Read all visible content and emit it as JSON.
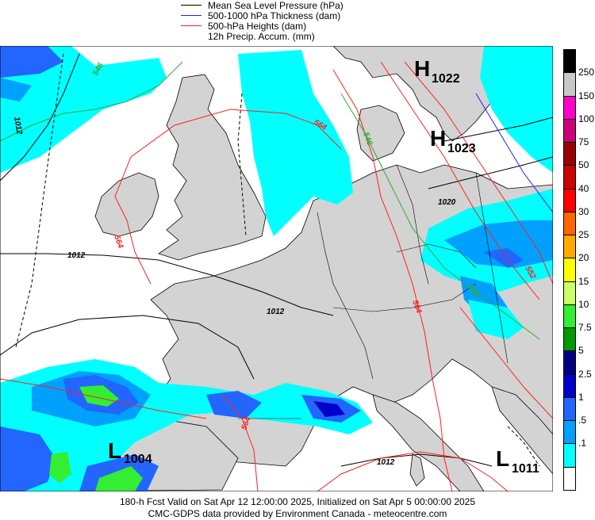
{
  "legend": {
    "items": [
      {
        "label": "Mean Sea Level Pressure (hPa)",
        "color": "#000000"
      },
      {
        "label": "500-1000 hPa Thickness (dam)",
        "color": "#2020ff"
      },
      {
        "label": "500-hPa Heights (dam)",
        "color": "#ff2020"
      },
      {
        "label": "12h Precip. Accum. (mm)",
        "color": ""
      }
    ]
  },
  "map": {
    "pressure_centers": [
      {
        "letter": "H",
        "value": "1022"
      },
      {
        "letter": "H",
        "value": "1023"
      },
      {
        "letter": "L",
        "value": "1004"
      },
      {
        "letter": "L",
        "value": "1011"
      }
    ],
    "isobar_labels": [
      "1012",
      "1012",
      "1012",
      "1012",
      "1020"
    ],
    "height_labels": [
      "564",
      "564",
      "564",
      "564",
      "552"
    ],
    "thickness_labels": [
      "546",
      "546",
      "546"
    ]
  },
  "colorbar": {
    "levels": [
      "250",
      "150",
      "100",
      "75",
      "50",
      "40",
      "30",
      "25",
      "20",
      "15",
      "10",
      "7.5",
      "5",
      "2.5",
      "1",
      ".5",
      ".1"
    ],
    "colors": [
      "#000000",
      "#c8c8c8",
      "#ff00cc",
      "#cc0077",
      "#990000",
      "#cc0000",
      "#ff0000",
      "#ff6600",
      "#ffaa00",
      "#ffff00",
      "#ccff66",
      "#33ee33",
      "#009900",
      "#000080",
      "#0000cc",
      "#2266ff",
      "#00a0ff",
      "#00ffff",
      "#ffffff"
    ]
  },
  "footer": {
    "line1": "180-h Fcst Valid on Sat Apr 12 12:00:00 2025, Initialized on Sat Apr  5 00:00:00 2025",
    "line2": "CMC-GDPS data provided by Environment Canada - meteocentre.com"
  }
}
